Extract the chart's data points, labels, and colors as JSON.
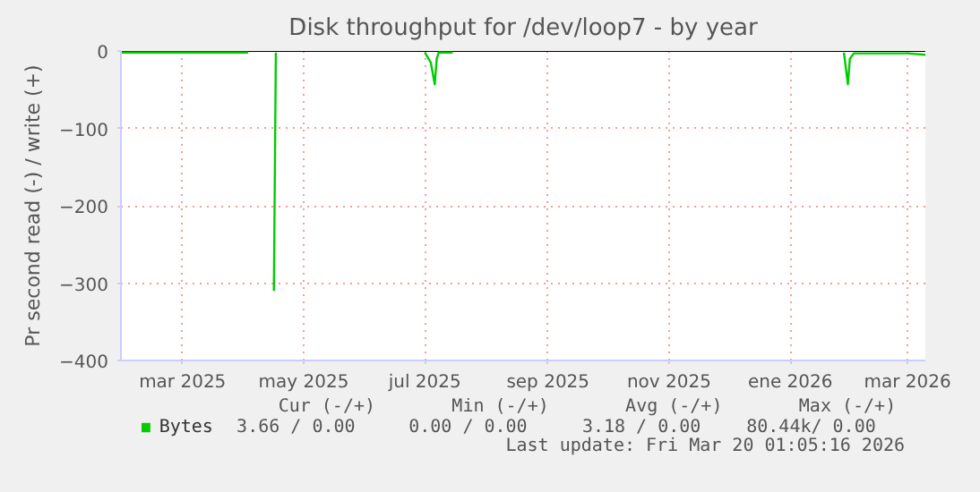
{
  "chart_data": {
    "type": "line",
    "title": "Disk throughput for /dev/loop7 - by year",
    "ylabel": "Pr second read (-) / write (+)",
    "x": [
      "2025-01-29",
      "2025-02-15",
      "2025-03-10",
      "2025-04-03",
      "2025-04-14",
      "2025-04-16",
      "2025-04-17",
      "2025-05-01",
      "2025-07-01",
      "2025-07-04",
      "2025-07-06",
      "2025-07-07",
      "2025-07-08",
      "2025-07-15",
      "2025-08-01",
      "2026-01-28",
      "2026-01-30",
      "2026-01-31",
      "2026-02-02",
      "2026-02-15",
      "2026-03-01",
      "2026-03-10"
    ],
    "series": [
      {
        "name": "Bytes",
        "color": "#00cc00",
        "values": [
          -2,
          -2,
          -2,
          -2,
          null,
          -310,
          -2,
          null,
          -2,
          -15,
          -43,
          -10,
          -2,
          -2,
          null,
          -2,
          -43,
          -10,
          -3,
          -3,
          -3,
          -5
        ]
      }
    ],
    "xlim": [
      "2025-01-29",
      "2026-03-10"
    ],
    "xticks": [
      {
        "value": "2025-03-01",
        "label": "mar 2025"
      },
      {
        "value": "2025-05-01",
        "label": "may 2025"
      },
      {
        "value": "2025-07-01",
        "label": "jul 2025"
      },
      {
        "value": "2025-09-01",
        "label": "sep 2025"
      },
      {
        "value": "2025-11-01",
        "label": "nov 2025"
      },
      {
        "value": "2026-01-01",
        "label": "ene 2026"
      },
      {
        "value": "2026-03-01",
        "label": "mar 2026"
      }
    ],
    "ylim": [
      -400,
      0
    ],
    "yticks": [
      -400,
      -300,
      -200,
      -100,
      0
    ],
    "grid": true,
    "legend": "bottom",
    "annotations": [
      "Cur (-/+)",
      "Min (-/+)",
      "Avg (-/+)",
      "Max (-/+)",
      "3.66 /   0.00",
      "0.00 /   0.00",
      "3.18 /   0.00",
      "80.44k/   0.00",
      "Last update: Fri Mar 20 01:05:16 2026"
    ]
  }
}
